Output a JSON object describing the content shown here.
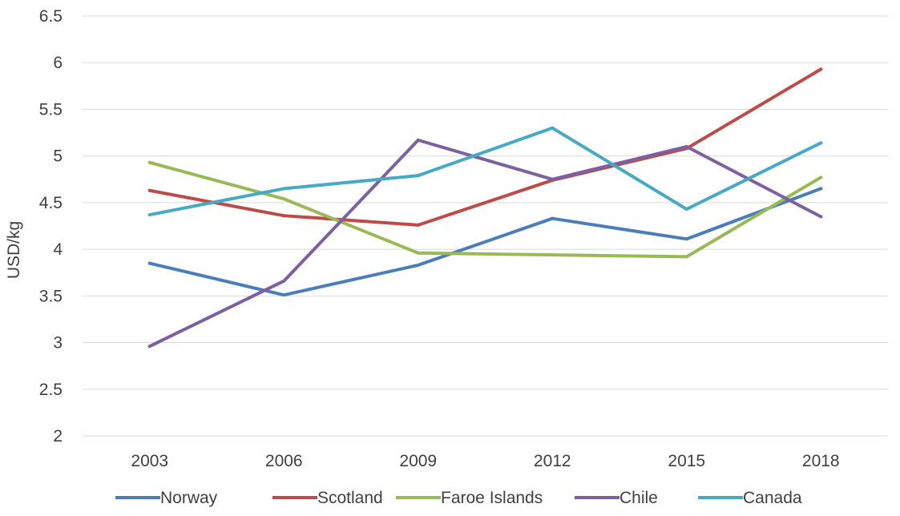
{
  "chart_data": {
    "type": "line",
    "title": "",
    "xlabel": "",
    "ylabel": "USD/kg",
    "categories": [
      "2003",
      "2006",
      "2009",
      "2012",
      "2015",
      "2018"
    ],
    "ylim": [
      2,
      6.5
    ],
    "yticks": [
      "2",
      "2.5",
      "3",
      "3.5",
      "4",
      "4.5",
      "5",
      "5.5",
      "6",
      "6.5"
    ],
    "grid": "horizontal",
    "legend_position": "bottom",
    "series": [
      {
        "name": "Norway",
        "color": "#4a7ebb",
        "values": [
          3.85,
          3.51,
          3.83,
          4.33,
          4.11,
          4.65
        ]
      },
      {
        "name": "Scotland",
        "color": "#be4b48",
        "values": [
          4.63,
          4.36,
          4.26,
          4.74,
          5.08,
          5.93
        ]
      },
      {
        "name": "Faroe Islands",
        "color": "#98b954",
        "values": [
          4.93,
          4.54,
          3.96,
          3.94,
          3.92,
          4.77
        ]
      },
      {
        "name": "Chile",
        "color": "#7d60a0",
        "values": [
          2.96,
          3.66,
          5.17,
          4.75,
          5.1,
          4.35
        ]
      },
      {
        "name": "Canada",
        "color": "#46aac5",
        "values": [
          4.37,
          4.65,
          4.79,
          5.3,
          4.43,
          5.14
        ]
      }
    ]
  }
}
